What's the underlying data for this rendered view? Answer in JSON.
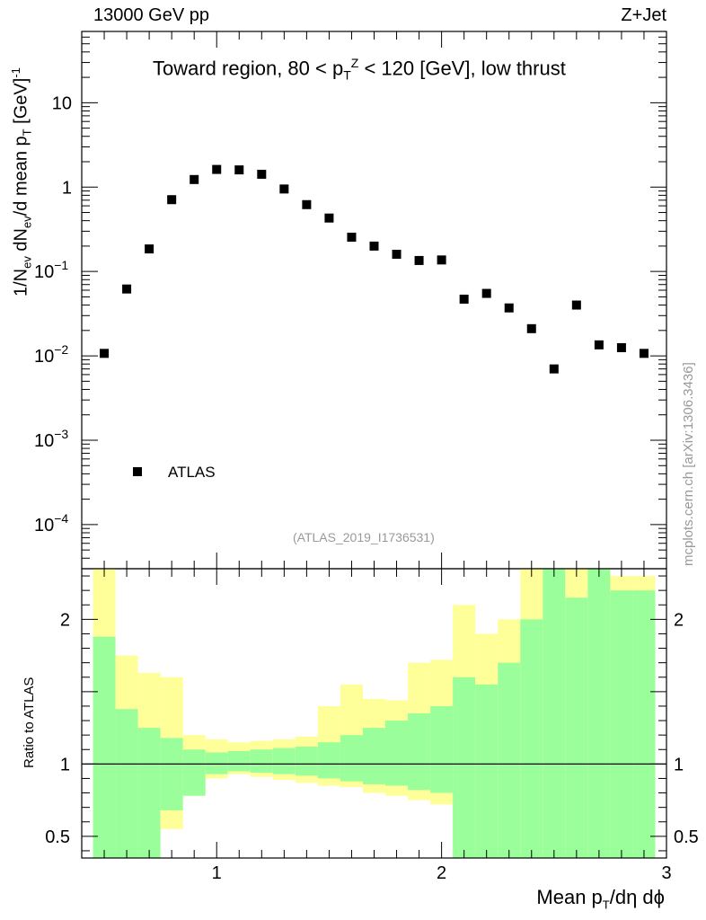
{
  "header": {
    "left": "13000 GeV pp",
    "right": "Z+Jet"
  },
  "plot_title_parts": {
    "before": "Toward region, 80 < p",
    "sub": "T",
    "sup": "Z",
    "after": " < 120 [GeV], low thrust"
  },
  "analysis_label": "(ATLAS_2019_I1736531)",
  "watermark": "mcplots.cern.ch [arXiv:1306.3436]",
  "ylabel_main": "1/N_ev dN_ev/d mean p_T [GeV]^-1",
  "ylabel_main_parts": [
    "1/N",
    "ev",
    " dN",
    "ev",
    "/d mean p",
    "T",
    " [GeV]",
    "-1"
  ],
  "ylabel_ratio": "Ratio to ATLAS",
  "xlabel_parts": [
    "Mean p",
    "T",
    "/dη dϕ"
  ],
  "legend": {
    "label": "ATLAS"
  },
  "colors": {
    "band_inner": "#9aff9a",
    "band_outer": "#ffff99",
    "marker": "#000000",
    "axis": "#000000",
    "grey_text": "#999999"
  },
  "chart_data": {
    "type": "scatter",
    "title": "Toward region, 80 < pT^Z < 120 [GeV], low thrust",
    "xlabel": "Mean pT/dη dϕ",
    "ylabel": "1/N_ev dN_ev/d mean pT [GeV]^-1",
    "xlim": [
      0.4,
      3.0
    ],
    "ylim_log": [
      3e-05,
      70
    ],
    "x_ticks": [
      "1",
      "2",
      "3"
    ],
    "y_ticks_main": [
      {
        "value": 0.0001,
        "base": "10",
        "exp": "−4"
      },
      {
        "value": 0.001,
        "base": "10",
        "exp": "−3"
      },
      {
        "value": 0.01,
        "base": "10",
        "exp": "−2"
      },
      {
        "value": 0.1,
        "base": "10",
        "exp": "−1"
      },
      {
        "value": 1,
        "base": "1",
        "exp": ""
      },
      {
        "value": 10,
        "base": "10",
        "exp": ""
      }
    ],
    "series": [
      {
        "name": "ATLAS",
        "bin_edges": [
          0.45,
          0.55,
          0.65,
          0.75,
          0.85,
          0.95,
          1.05,
          1.15,
          1.25,
          1.35,
          1.45,
          1.55,
          1.65,
          1.75,
          1.85,
          1.95,
          2.05,
          2.15,
          2.25,
          2.35,
          2.45,
          2.55,
          2.65,
          2.75,
          2.85,
          2.95
        ],
        "x": [
          0.5,
          0.6,
          0.7,
          0.8,
          0.9,
          1.0,
          1.1,
          1.2,
          1.3,
          1.4,
          1.5,
          1.6,
          1.7,
          1.8,
          1.9,
          2.0,
          2.1,
          2.2,
          2.3,
          2.4,
          2.5,
          2.6,
          2.7,
          2.8,
          2.9
        ],
        "y": [
          0.0107,
          0.062,
          0.185,
          0.71,
          1.23,
          1.62,
          1.6,
          1.42,
          0.95,
          0.62,
          0.43,
          0.255,
          0.2,
          0.16,
          0.135,
          0.137,
          0.047,
          0.055,
          0.037,
          0.021,
          0.007,
          0.04,
          0.0135,
          0.0125,
          0.0107
        ]
      }
    ],
    "ratio": {
      "ylabel": "Ratio to ATLAS",
      "ylim": [
        0.35,
        2.35
      ],
      "y_ticks": [
        "0.5",
        "1",
        "2"
      ],
      "y_tick_values": [
        0.5,
        1,
        2
      ],
      "inner_band": {
        "low": [
          0.35,
          0.35,
          0.35,
          0.68,
          0.78,
          0.93,
          0.95,
          0.94,
          0.93,
          0.92,
          0.9,
          0.88,
          0.86,
          0.85,
          0.82,
          0.8,
          0.35,
          0.35,
          0.35,
          0.35,
          0.35,
          0.35,
          0.35,
          0.35,
          0.35
        ],
        "high": [
          1.88,
          1.38,
          1.25,
          1.18,
          1.1,
          1.08,
          1.09,
          1.1,
          1.11,
          1.12,
          1.15,
          1.2,
          1.25,
          1.3,
          1.35,
          1.4,
          1.6,
          1.55,
          1.7,
          2.0,
          2.35,
          2.15,
          2.35,
          2.2,
          2.2
        ]
      },
      "outer_band": {
        "low": [
          0.35,
          0.35,
          0.55,
          0.55,
          0.8,
          0.9,
          0.93,
          0.91,
          0.89,
          0.87,
          0.85,
          0.84,
          0.8,
          0.78,
          0.75,
          0.72,
          0.35,
          0.35,
          0.35,
          0.35,
          0.35,
          0.35,
          0.35,
          0.35,
          0.35
        ],
        "high": [
          2.35,
          1.75,
          1.63,
          1.6,
          1.2,
          1.17,
          1.15,
          1.16,
          1.17,
          1.19,
          1.4,
          1.55,
          1.45,
          1.44,
          1.7,
          1.72,
          2.1,
          1.9,
          2.0,
          2.35,
          2.35,
          2.35,
          2.35,
          2.3,
          2.3
        ]
      }
    }
  }
}
